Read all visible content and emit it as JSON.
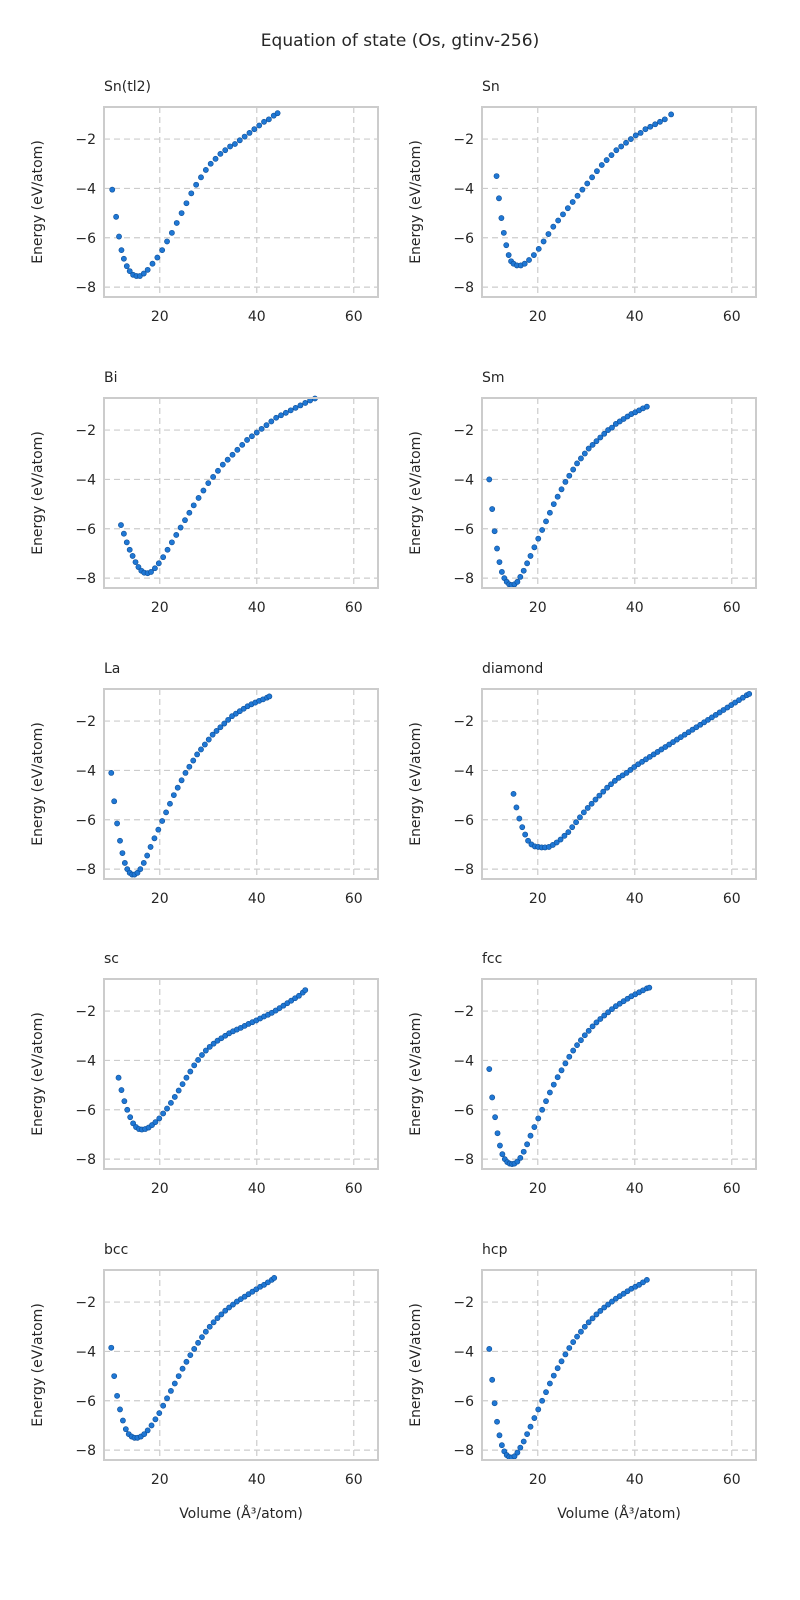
{
  "title": "Equation of state (Os, gtinv-256)",
  "chart_data": {
    "type": "scatter",
    "title": "Equation of state (Os, gtinv-256)",
    "xlabel": "Volume (Å³/atom)",
    "ylabel": "Energy (eV/atom)",
    "xlim": [
      8.5,
      65
    ],
    "ylim": [
      -8.4,
      -0.7
    ],
    "xticks": [
      20,
      40,
      60
    ],
    "yticks": [
      -8,
      -6,
      -4,
      -2
    ],
    "grid": true,
    "marker_color": "#1f77d4",
    "edge_color": "#0d4f99",
    "panels": [
      {
        "name": "Sn(tl2)",
        "x": [
          10.2,
          11.0,
          11.6,
          12.1,
          12.6,
          13.2,
          13.8,
          14.5,
          15.2,
          15.9,
          16.7,
          17.5,
          18.5,
          19.5,
          20.5,
          21.5,
          22.5,
          23.5,
          24.5,
          25.5,
          26.5,
          27.5,
          28.5,
          29.5,
          30.5,
          31.5,
          32.5,
          33.5,
          34.5,
          35.5,
          36.5,
          37.5,
          38.5,
          39.5,
          40.5,
          41.5,
          42.5,
          43.5,
          44.3
        ],
        "y": [
          -4.05,
          -5.15,
          -5.95,
          -6.5,
          -6.85,
          -7.15,
          -7.35,
          -7.5,
          -7.55,
          -7.55,
          -7.45,
          -7.3,
          -7.05,
          -6.8,
          -6.5,
          -6.15,
          -5.8,
          -5.4,
          -5.0,
          -4.6,
          -4.2,
          -3.85,
          -3.55,
          -3.25,
          -3.0,
          -2.8,
          -2.6,
          -2.45,
          -2.3,
          -2.2,
          -2.05,
          -1.9,
          -1.75,
          -1.6,
          -1.45,
          -1.3,
          -1.2,
          -1.05,
          -0.95
        ]
      },
      {
        "name": "Sn",
        "x": [
          11.5,
          12.0,
          12.5,
          13.0,
          13.5,
          14.0,
          14.5,
          15.0,
          15.7,
          16.5,
          17.3,
          18.2,
          19.2,
          20.2,
          21.2,
          22.2,
          23.2,
          24.2,
          25.2,
          26.2,
          27.2,
          28.2,
          29.2,
          30.2,
          31.2,
          32.2,
          33.2,
          34.2,
          35.2,
          36.2,
          37.2,
          38.2,
          39.2,
          40.2,
          41.2,
          42.2,
          43.2,
          44.2,
          45.2,
          46.2,
          47.5
        ],
        "y": [
          -3.5,
          -4.4,
          -5.2,
          -5.8,
          -6.3,
          -6.7,
          -6.95,
          -7.05,
          -7.12,
          -7.12,
          -7.05,
          -6.9,
          -6.7,
          -6.45,
          -6.15,
          -5.85,
          -5.55,
          -5.3,
          -5.05,
          -4.8,
          -4.55,
          -4.3,
          -4.05,
          -3.8,
          -3.55,
          -3.3,
          -3.05,
          -2.85,
          -2.65,
          -2.45,
          -2.3,
          -2.15,
          -2.0,
          -1.85,
          -1.75,
          -1.6,
          -1.5,
          -1.4,
          -1.3,
          -1.2,
          -1.0
        ]
      },
      {
        "name": "Bi",
        "x": [
          12.0,
          12.6,
          13.2,
          13.8,
          14.4,
          15.0,
          15.6,
          16.2,
          16.8,
          17.5,
          18.2,
          19.0,
          19.8,
          20.7,
          21.6,
          22.5,
          23.4,
          24.3,
          25.2,
          26.1,
          27.0,
          28.0,
          29.0,
          30.0,
          31.0,
          32.0,
          33.0,
          34.0,
          35.0,
          36.0,
          37.0,
          38.0,
          39.0,
          40.0,
          41.0,
          42.0,
          43.0,
          44.0,
          45.0,
          46.0,
          47.0,
          48.0,
          49.0,
          50.0,
          51.0,
          52.0
        ],
        "y": [
          -5.85,
          -6.2,
          -6.55,
          -6.85,
          -7.1,
          -7.35,
          -7.55,
          -7.7,
          -7.78,
          -7.8,
          -7.75,
          -7.6,
          -7.4,
          -7.15,
          -6.85,
          -6.55,
          -6.25,
          -5.95,
          -5.65,
          -5.35,
          -5.05,
          -4.75,
          -4.45,
          -4.15,
          -3.9,
          -3.65,
          -3.4,
          -3.2,
          -3.0,
          -2.8,
          -2.6,
          -2.4,
          -2.25,
          -2.1,
          -1.95,
          -1.8,
          -1.65,
          -1.5,
          -1.4,
          -1.3,
          -1.2,
          -1.1,
          -1.0,
          -0.9,
          -0.8,
          -0.72
        ]
      },
      {
        "name": "Sm",
        "x": [
          10.0,
          10.6,
          11.1,
          11.6,
          12.1,
          12.6,
          13.1,
          13.6,
          14.1,
          14.6,
          15.2,
          15.8,
          16.4,
          17.1,
          17.8,
          18.5,
          19.3,
          20.1,
          20.9,
          21.7,
          22.5,
          23.3,
          24.1,
          24.9,
          25.7,
          26.5,
          27.3,
          28.1,
          28.9,
          29.7,
          30.5,
          31.3,
          32.1,
          32.9,
          33.7,
          34.5,
          35.3,
          36.1,
          36.9,
          37.7,
          38.5,
          39.3,
          40.1,
          40.9,
          41.7,
          42.5
        ],
        "y": [
          -4.0,
          -5.2,
          -6.1,
          -6.8,
          -7.35,
          -7.75,
          -8.0,
          -8.15,
          -8.25,
          -8.28,
          -8.25,
          -8.15,
          -7.95,
          -7.7,
          -7.4,
          -7.1,
          -6.75,
          -6.4,
          -6.05,
          -5.7,
          -5.35,
          -5.0,
          -4.7,
          -4.4,
          -4.1,
          -3.85,
          -3.6,
          -3.35,
          -3.15,
          -2.95,
          -2.75,
          -2.6,
          -2.45,
          -2.3,
          -2.15,
          -2.0,
          -1.9,
          -1.75,
          -1.65,
          -1.55,
          -1.45,
          -1.35,
          -1.28,
          -1.2,
          -1.12,
          -1.05
        ]
      },
      {
        "name": "La",
        "x": [
          10.0,
          10.6,
          11.2,
          11.8,
          12.3,
          12.8,
          13.3,
          13.8,
          14.3,
          14.8,
          15.4,
          16.0,
          16.7,
          17.4,
          18.1,
          18.9,
          19.7,
          20.5,
          21.3,
          22.1,
          22.9,
          23.7,
          24.5,
          25.3,
          26.1,
          26.9,
          27.7,
          28.5,
          29.3,
          30.1,
          30.9,
          31.7,
          32.5,
          33.3,
          34.1,
          34.9,
          35.7,
          36.5,
          37.3,
          38.1,
          38.9,
          39.7,
          40.5,
          41.3,
          42.1,
          42.6
        ],
        "y": [
          -4.1,
          -5.25,
          -6.15,
          -6.85,
          -7.35,
          -7.75,
          -8.0,
          -8.15,
          -8.22,
          -8.22,
          -8.15,
          -8.0,
          -7.75,
          -7.45,
          -7.1,
          -6.75,
          -6.4,
          -6.05,
          -5.7,
          -5.35,
          -5.0,
          -4.7,
          -4.4,
          -4.1,
          -3.85,
          -3.6,
          -3.35,
          -3.15,
          -2.95,
          -2.75,
          -2.55,
          -2.4,
          -2.25,
          -2.1,
          -1.95,
          -1.8,
          -1.7,
          -1.6,
          -1.5,
          -1.4,
          -1.32,
          -1.25,
          -1.18,
          -1.12,
          -1.05,
          -1.0
        ]
      },
      {
        "name": "diamond",
        "x": [
          15.0,
          15.6,
          16.2,
          16.8,
          17.4,
          18.0,
          18.7,
          19.4,
          20.1,
          20.8,
          21.5,
          22.3,
          23.1,
          23.9,
          24.7,
          25.5,
          26.3,
          27.1,
          27.9,
          28.7,
          29.5,
          30.3,
          31.1,
          31.9,
          32.7,
          33.5,
          34.3,
          35.1,
          35.9,
          36.7,
          37.5,
          38.3,
          39.1,
          39.9,
          40.7,
          41.5,
          42.3,
          43.1,
          43.9,
          44.7,
          45.5,
          46.3,
          47.1,
          47.9,
          48.7,
          49.5,
          50.3,
          51.1,
          51.9,
          52.7,
          53.5,
          54.3,
          55.1,
          55.9,
          56.7,
          57.5,
          58.3,
          59.1,
          59.9,
          60.7,
          61.5,
          62.3,
          63.1,
          63.6
        ],
        "y": [
          -4.95,
          -5.5,
          -5.95,
          -6.3,
          -6.6,
          -6.85,
          -7.0,
          -7.08,
          -7.1,
          -7.12,
          -7.12,
          -7.1,
          -7.02,
          -6.92,
          -6.8,
          -6.65,
          -6.5,
          -6.3,
          -6.1,
          -5.9,
          -5.7,
          -5.52,
          -5.35,
          -5.18,
          -5.02,
          -4.86,
          -4.7,
          -4.56,
          -4.42,
          -4.3,
          -4.2,
          -4.1,
          -3.98,
          -3.86,
          -3.75,
          -3.65,
          -3.55,
          -3.45,
          -3.35,
          -3.25,
          -3.15,
          -3.05,
          -2.95,
          -2.85,
          -2.75,
          -2.65,
          -2.55,
          -2.45,
          -2.35,
          -2.25,
          -2.15,
          -2.05,
          -1.95,
          -1.85,
          -1.75,
          -1.65,
          -1.55,
          -1.45,
          -1.35,
          -1.25,
          -1.15,
          -1.05,
          -0.95,
          -0.9
        ]
      },
      {
        "name": "sc",
        "x": [
          11.5,
          12.1,
          12.7,
          13.3,
          13.9,
          14.5,
          15.1,
          15.7,
          16.3,
          17.0,
          17.7,
          18.4,
          19.1,
          19.9,
          20.7,
          21.5,
          22.3,
          23.1,
          23.9,
          24.7,
          25.5,
          26.3,
          27.1,
          27.9,
          28.7,
          29.5,
          30.3,
          31.1,
          31.9,
          32.7,
          33.5,
          34.3,
          35.1,
          35.9,
          36.7,
          37.5,
          38.3,
          39.1,
          39.9,
          40.7,
          41.5,
          42.3,
          43.1,
          43.9,
          44.7,
          45.5,
          46.3,
          47.1,
          47.9,
          48.7,
          49.5,
          50.0
        ],
        "y": [
          -4.7,
          -5.2,
          -5.65,
          -6.0,
          -6.3,
          -6.55,
          -6.7,
          -6.78,
          -6.8,
          -6.78,
          -6.72,
          -6.62,
          -6.5,
          -6.35,
          -6.15,
          -5.95,
          -5.72,
          -5.48,
          -5.22,
          -4.96,
          -4.7,
          -4.45,
          -4.2,
          -3.98,
          -3.78,
          -3.6,
          -3.45,
          -3.32,
          -3.2,
          -3.1,
          -3.0,
          -2.9,
          -2.82,
          -2.75,
          -2.68,
          -2.6,
          -2.52,
          -2.45,
          -2.38,
          -2.3,
          -2.22,
          -2.15,
          -2.07,
          -1.98,
          -1.88,
          -1.78,
          -1.68,
          -1.58,
          -1.48,
          -1.38,
          -1.25,
          -1.15
        ]
      },
      {
        "name": "fcc",
        "x": [
          10.0,
          10.6,
          11.2,
          11.7,
          12.2,
          12.7,
          13.2,
          13.7,
          14.2,
          14.7,
          15.2,
          15.8,
          16.4,
          17.1,
          17.8,
          18.5,
          19.3,
          20.1,
          20.9,
          21.7,
          22.5,
          23.3,
          24.1,
          24.9,
          25.7,
          26.5,
          27.3,
          28.1,
          28.9,
          29.7,
          30.5,
          31.3,
          32.1,
          32.9,
          33.7,
          34.5,
          35.3,
          36.1,
          36.9,
          37.7,
          38.5,
          39.3,
          40.1,
          40.9,
          41.7,
          42.5,
          43.0
        ],
        "y": [
          -4.35,
          -5.5,
          -6.3,
          -6.95,
          -7.45,
          -7.8,
          -8.0,
          -8.12,
          -8.18,
          -8.2,
          -8.18,
          -8.1,
          -7.95,
          -7.7,
          -7.4,
          -7.05,
          -6.7,
          -6.35,
          -6.0,
          -5.65,
          -5.3,
          -4.98,
          -4.68,
          -4.4,
          -4.12,
          -3.85,
          -3.6,
          -3.38,
          -3.18,
          -2.98,
          -2.8,
          -2.62,
          -2.46,
          -2.32,
          -2.18,
          -2.05,
          -1.92,
          -1.8,
          -1.7,
          -1.6,
          -1.5,
          -1.4,
          -1.32,
          -1.24,
          -1.16,
          -1.08,
          -1.05
        ]
      },
      {
        "name": "bcc",
        "x": [
          10.0,
          10.6,
          11.2,
          11.8,
          12.4,
          13.0,
          13.6,
          14.2,
          14.8,
          15.4,
          16.1,
          16.8,
          17.5,
          18.3,
          19.1,
          19.9,
          20.7,
          21.5,
          22.3,
          23.1,
          23.9,
          24.7,
          25.5,
          26.3,
          27.1,
          27.9,
          28.7,
          29.5,
          30.3,
          31.1,
          31.9,
          32.7,
          33.5,
          34.3,
          35.1,
          35.9,
          36.7,
          37.5,
          38.3,
          39.1,
          39.9,
          40.7,
          41.5,
          42.3,
          43.1,
          43.6
        ],
        "y": [
          -3.85,
          -5.0,
          -5.8,
          -6.35,
          -6.8,
          -7.15,
          -7.35,
          -7.45,
          -7.5,
          -7.5,
          -7.45,
          -7.35,
          -7.2,
          -7.0,
          -6.75,
          -6.5,
          -6.2,
          -5.9,
          -5.6,
          -5.3,
          -5.0,
          -4.7,
          -4.42,
          -4.15,
          -3.9,
          -3.65,
          -3.42,
          -3.2,
          -3.0,
          -2.82,
          -2.65,
          -2.5,
          -2.35,
          -2.22,
          -2.1,
          -1.98,
          -1.88,
          -1.78,
          -1.68,
          -1.58,
          -1.48,
          -1.38,
          -1.3,
          -1.2,
          -1.1,
          -1.02
        ]
      },
      {
        "name": "hcp",
        "x": [
          10.0,
          10.6,
          11.1,
          11.6,
          12.1,
          12.6,
          13.1,
          13.6,
          14.1,
          14.6,
          15.2,
          15.8,
          16.4,
          17.1,
          17.8,
          18.5,
          19.3,
          20.1,
          20.9,
          21.7,
          22.5,
          23.3,
          24.1,
          24.9,
          25.7,
          26.5,
          27.3,
          28.1,
          28.9,
          29.7,
          30.5,
          31.3,
          32.1,
          32.9,
          33.7,
          34.5,
          35.3,
          36.1,
          36.9,
          37.7,
          38.5,
          39.3,
          40.1,
          40.9,
          41.7,
          42.5
        ],
        "y": [
          -3.9,
          -5.15,
          -6.1,
          -6.85,
          -7.4,
          -7.8,
          -8.05,
          -8.2,
          -8.28,
          -8.3,
          -8.25,
          -8.1,
          -7.9,
          -7.65,
          -7.35,
          -7.05,
          -6.7,
          -6.35,
          -6.0,
          -5.65,
          -5.3,
          -4.98,
          -4.68,
          -4.4,
          -4.12,
          -3.86,
          -3.62,
          -3.4,
          -3.2,
          -3.0,
          -2.82,
          -2.66,
          -2.5,
          -2.36,
          -2.22,
          -2.1,
          -1.98,
          -1.86,
          -1.76,
          -1.66,
          -1.56,
          -1.46,
          -1.38,
          -1.3,
          -1.2,
          -1.1
        ]
      }
    ]
  }
}
